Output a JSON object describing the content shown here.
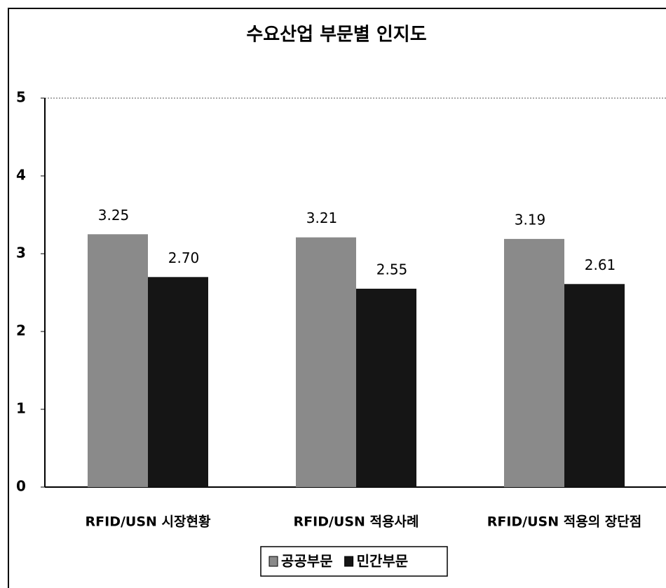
{
  "chart_data": {
    "type": "bar",
    "title": "수요산업 부문별 인지도",
    "categories": [
      "RFID/USN 시장현황",
      "RFID/USN 적용사례",
      "RFID/USN 적용의 장단점"
    ],
    "series": [
      {
        "name": "공공부문",
        "color": "#8a8a8a",
        "values": [
          3.25,
          3.21,
          3.19
        ]
      },
      {
        "name": "민간부문",
        "color": "#151515",
        "values": [
          2.7,
          2.55,
          2.61
        ],
        "value_labels": [
          "2.70",
          "2.55",
          "2.61"
        ]
      }
    ],
    "ylim": [
      0,
      5
    ],
    "yticks": [
      0,
      1,
      2,
      3,
      4,
      5
    ],
    "grid": false,
    "legend": "bottom"
  }
}
